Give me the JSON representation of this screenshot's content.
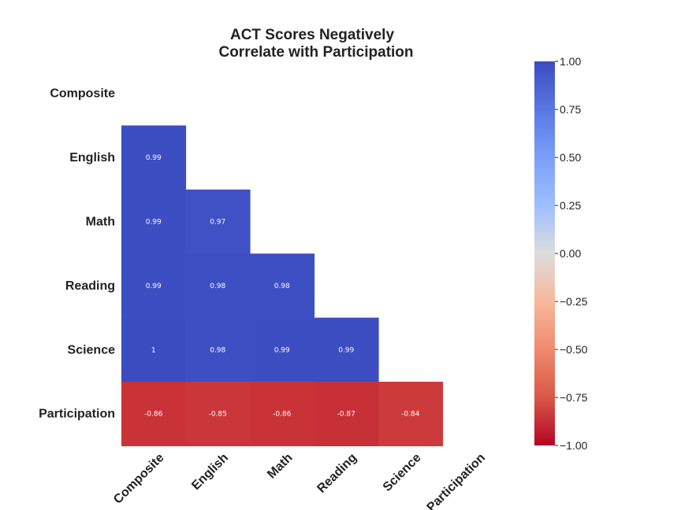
{
  "chart_data": {
    "type": "heatmap",
    "title_lines": [
      "ACT Scores Negatively",
      "Correlate with Participation"
    ],
    "rows": [
      "Composite",
      "English",
      "Math",
      "Reading",
      "Science",
      "Participation"
    ],
    "columns": [
      "Composite",
      "English",
      "Math",
      "Reading",
      "Science",
      "Participation"
    ],
    "mask": "upper-triangle-including-diagonal",
    "cells": [
      {
        "row": "English",
        "col": "Composite",
        "value": 0.99,
        "label": "0.99"
      },
      {
        "row": "Math",
        "col": "Composite",
        "value": 0.99,
        "label": "0.99"
      },
      {
        "row": "Math",
        "col": "English",
        "value": 0.97,
        "label": "0.97"
      },
      {
        "row": "Reading",
        "col": "Composite",
        "value": 0.99,
        "label": "0.99"
      },
      {
        "row": "Reading",
        "col": "English",
        "value": 0.98,
        "label": "0.98"
      },
      {
        "row": "Reading",
        "col": "Math",
        "value": 0.98,
        "label": "0.98"
      },
      {
        "row": "Science",
        "col": "Composite",
        "value": 1,
        "label": "1"
      },
      {
        "row": "Science",
        "col": "English",
        "value": 0.98,
        "label": "0.98"
      },
      {
        "row": "Science",
        "col": "Math",
        "value": 0.99,
        "label": "0.99"
      },
      {
        "row": "Science",
        "col": "Reading",
        "value": 0.99,
        "label": "0.99"
      },
      {
        "row": "Participation",
        "col": "Composite",
        "value": -0.86,
        "label": "-0.86"
      },
      {
        "row": "Participation",
        "col": "English",
        "value": -0.85,
        "label": "-0.85"
      },
      {
        "row": "Participation",
        "col": "Math",
        "value": -0.86,
        "label": "-0.86"
      },
      {
        "row": "Participation",
        "col": "Reading",
        "value": -0.87,
        "label": "-0.87"
      },
      {
        "row": "Participation",
        "col": "Science",
        "value": -0.84,
        "label": "-0.84"
      }
    ],
    "colorbar": {
      "colormap": "coolwarm",
      "range": [
        -1.0,
        1.0
      ],
      "ticks": [
        1.0,
        0.75,
        0.5,
        0.25,
        0.0,
        -0.25,
        -0.5,
        -0.75,
        -1.0
      ],
      "tick_labels": [
        "1.00",
        "0.75",
        "0.50",
        "0.25",
        "0.00",
        "−0.25",
        "−0.50",
        "−0.75",
        "−1.00"
      ]
    },
    "colors": {
      "high": "#3b4cc0",
      "mid": "#dddddd",
      "low": "#b40426"
    },
    "grid": false
  }
}
